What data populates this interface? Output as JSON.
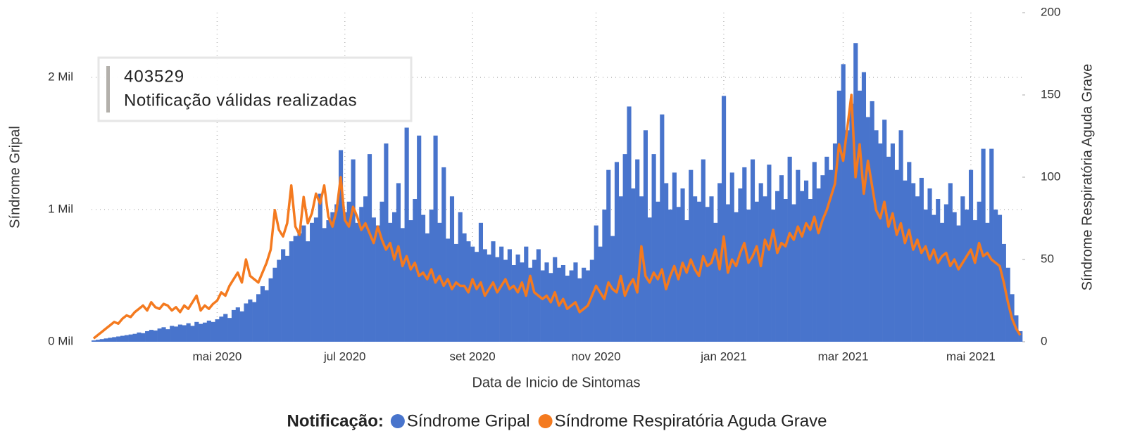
{
  "chart_data": {
    "type": "bar",
    "xlabel": "Data de Inicio de Sintomas",
    "ylabel": "Síndrome Gripal",
    "y2label": "Síndrome Respiratória Aguda Grave",
    "annotation": {
      "value": 403529,
      "label": "Notificação válidas realizadas"
    },
    "legend_title": "Notificação:",
    "legend": "bottom",
    "grid": true,
    "ylim": [
      0,
      2490
    ],
    "yticks": [
      {
        "value": 0,
        "label": "0 Mil"
      },
      {
        "value": 1000,
        "label": "1 Mil"
      },
      {
        "value": 2000,
        "label": "2 Mil"
      }
    ],
    "y2lim": [
      0,
      200
    ],
    "y2ticks": [
      0,
      50,
      100,
      150,
      200
    ],
    "categories": [
      null,
      null,
      null,
      null,
      null,
      null,
      null,
      null,
      null,
      null,
      null,
      null,
      null,
      null,
      null,
      null,
      null,
      null,
      null,
      null,
      null,
      null,
      null,
      null,
      null,
      null,
      null,
      null,
      null,
      null,
      "mai 2020",
      null,
      null,
      null,
      null,
      null,
      null,
      null,
      null,
      null,
      null,
      null,
      null,
      null,
      null,
      null,
      null,
      null,
      null,
      null,
      null,
      null,
      null,
      null,
      null,
      null,
      null,
      null,
      null,
      null,
      null,
      "jul 2020",
      null,
      null,
      null,
      null,
      null,
      null,
      null,
      null,
      null,
      null,
      null,
      null,
      null,
      null,
      null,
      null,
      null,
      null,
      null,
      null,
      null,
      null,
      null,
      null,
      null,
      null,
      null,
      null,
      null,
      null,
      "set 2020",
      null,
      null,
      null,
      null,
      null,
      null,
      null,
      null,
      null,
      null,
      null,
      null,
      null,
      null,
      null,
      null,
      null,
      null,
      null,
      null,
      null,
      null,
      null,
      null,
      null,
      null,
      null,
      null,
      null,
      "nov 2020",
      null,
      null,
      null,
      null,
      null,
      null,
      null,
      null,
      null,
      null,
      null,
      null,
      null,
      null,
      null,
      null,
      null,
      null,
      null,
      null,
      null,
      null,
      null,
      null,
      null,
      null,
      null,
      null,
      null,
      null,
      "jan 2021",
      null,
      null,
      null,
      null,
      null,
      null,
      null,
      null,
      null,
      null,
      null,
      null,
      null,
      null,
      null,
      null,
      null,
      null,
      null,
      null,
      null,
      null,
      null,
      null,
      null,
      null,
      null,
      null,
      "mar 2021",
      null,
      null,
      null,
      null,
      null,
      null,
      null,
      null,
      null,
      null,
      null,
      null,
      null,
      null,
      null,
      null,
      null,
      null,
      null,
      null,
      null,
      null,
      null,
      null,
      null,
      null,
      null,
      null,
      null,
      null,
      "mai 2021",
      null,
      null,
      null,
      null,
      null,
      null,
      null,
      null,
      null,
      null,
      null,
      null
    ],
    "series": [
      {
        "name": "Síndrome Gripal",
        "color": "#4874cc",
        "type": "bar",
        "values": [
          10,
          15,
          20,
          25,
          30,
          35,
          40,
          45,
          50,
          55,
          60,
          70,
          65,
          80,
          90,
          85,
          100,
          110,
          95,
          120,
          115,
          130,
          125,
          140,
          120,
          150,
          135,
          145,
          160,
          150,
          170,
          190,
          210,
          180,
          240,
          260,
          230,
          290,
          320,
          300,
          360,
          420,
          390,
          480,
          560,
          620,
          700,
          650,
          760,
          800,
          820,
          880,
          760,
          900,
          940,
          1120,
          860,
          920,
          980,
          1040,
          1450,
          980,
          1060,
          1380,
          900,
          1020,
          1100,
          1420,
          940,
          880,
          1060,
          1500,
          900,
          980,
          1200,
          860,
          1620,
          920,
          1080,
          1560,
          960,
          820,
          1000,
          1560,
          900,
          1320,
          780,
          1100,
          740,
          980,
          820,
          760,
          720,
          680,
          900,
          700,
          660,
          760,
          640,
          720,
          620,
          700,
          580,
          660,
          600,
          720,
          560,
          620,
          700,
          540,
          600,
          520,
          640,
          560,
          580,
          500,
          540,
          600,
          480,
          560,
          540,
          620,
          880,
          720,
          1000,
          1300,
          800,
          1360,
          1100,
          1420,
          1780,
          1160,
          1380,
          1100,
          1600,
          940,
          1420,
          1060,
          1720,
          1200,
          1000,
          1280,
          1020,
          1160,
          920,
          1300,
          1100,
          1060,
          1380,
          1020,
          1100,
          900,
          1200,
          1860,
          1040,
          1280,
          980,
          1160,
          1320,
          1000,
          1380,
          1060,
          1200,
          1100,
          1340,
          1000,
          1140,
          1260,
          1080,
          1400,
          1040,
          1300,
          1140,
          1220,
          1080,
          1360,
          1160,
          1260,
          1400,
          1300,
          1500,
          1900,
          2100,
          1600,
          1800,
          2260,
          1900,
          2040,
          1700,
          1820,
          1600,
          1500,
          1680,
          1400,
          1500,
          1300,
          1600,
          1220,
          1360,
          1200,
          1100,
          1240,
          1000,
          1160,
          960,
          1080,
          900,
          1040,
          1200,
          980,
          880,
          1100,
          1000,
          1300,
          920,
          1060,
          1460,
          900,
          1460,
          1000,
          960,
          740,
          560,
          360,
          200,
          80
        ]
      },
      {
        "name": "Síndrome Respiratória Aguda Grave",
        "color": "#f47a1f",
        "type": "line",
        "axis": "y2",
        "values": [
          2,
          4,
          6,
          8,
          10,
          12,
          11,
          14,
          16,
          15,
          18,
          20,
          22,
          19,
          24,
          21,
          20,
          23,
          22,
          19,
          21,
          18,
          22,
          20,
          24,
          28,
          19,
          22,
          20,
          23,
          25,
          30,
          28,
          34,
          38,
          42,
          36,
          50,
          40,
          38,
          36,
          42,
          48,
          56,
          80,
          68,
          64,
          72,
          95,
          70,
          65,
          88,
          72,
          78,
          90,
          84,
          95,
          76,
          70,
          80,
          100,
          74,
          70,
          82,
          76,
          68,
          72,
          66,
          60,
          70,
          62,
          56,
          60,
          50,
          58,
          46,
          52,
          44,
          48,
          40,
          42,
          38,
          44,
          36,
          40,
          34,
          38,
          32,
          36,
          34,
          34,
          30,
          38,
          32,
          36,
          28,
          32,
          36,
          30,
          34,
          38,
          32,
          34,
          30,
          36,
          28,
          40,
          30,
          28,
          26,
          28,
          24,
          30,
          22,
          26,
          20,
          22,
          24,
          18,
          20,
          22,
          28,
          34,
          30,
          26,
          36,
          32,
          30,
          40,
          28,
          34,
          38,
          30,
          58,
          40,
          36,
          42,
          38,
          44,
          32,
          40,
          46,
          38,
          48,
          42,
          50,
          44,
          40,
          52,
          46,
          48,
          56,
          44,
          64,
          42,
          50,
          46,
          54,
          60,
          48,
          52,
          58,
          46,
          62,
          56,
          68,
          54,
          60,
          58,
          66,
          62,
          70,
          64,
          72,
          68,
          76,
          66,
          74,
          80,
          88,
          96,
          120,
          110,
          130,
          150,
          100,
          120,
          90,
          110,
          95,
          80,
          75,
          85,
          70,
          78,
          65,
          72,
          60,
          68,
          56,
          62,
          54,
          58,
          50,
          56,
          48,
          52,
          54,
          46,
          50,
          44,
          48,
          52,
          56,
          48,
          60,
          52,
          54,
          50,
          48,
          46,
          36,
          24,
          14,
          8,
          4
        ]
      }
    ]
  }
}
